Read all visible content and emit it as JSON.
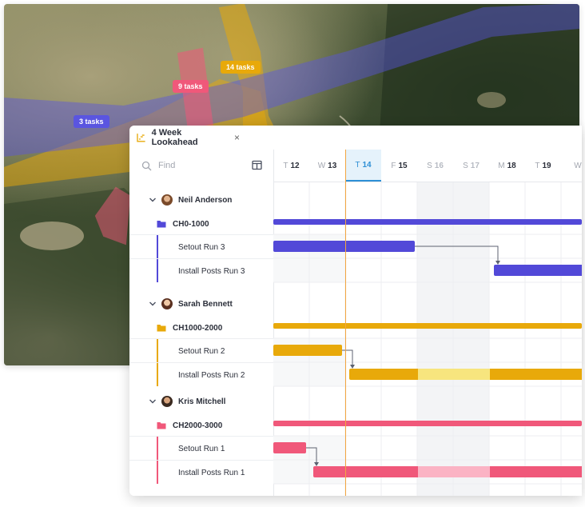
{
  "map": {
    "tags": [
      {
        "label": "14 tasks",
        "color": "#e8a90a"
      },
      {
        "label": "9 tasks",
        "color": "#f0587a"
      },
      {
        "label": "3 tasks",
        "color": "#5a55e0"
      }
    ]
  },
  "panel": {
    "tab_title": "4 Week Lookahead",
    "tab_close": "×",
    "search_placeholder": "Find",
    "days": [
      {
        "letter": "T",
        "num": "12",
        "weekend": false,
        "today": false
      },
      {
        "letter": "W",
        "num": "13",
        "weekend": false,
        "today": false
      },
      {
        "letter": "T",
        "num": "14",
        "weekend": false,
        "today": true
      },
      {
        "letter": "F",
        "num": "15",
        "weekend": false,
        "today": false
      },
      {
        "letter": "S",
        "num": "16",
        "weekend": true,
        "today": false
      },
      {
        "letter": "S",
        "num": "17",
        "weekend": true,
        "today": false
      },
      {
        "letter": "M",
        "num": "18",
        "weekend": false,
        "today": false
      },
      {
        "letter": "T",
        "num": "19",
        "weekend": false,
        "today": false
      },
      {
        "letter": "W",
        "num": "",
        "weekend": false,
        "today": false
      }
    ],
    "groups": [
      {
        "person": "Neil Anderson",
        "chainage": "CH0-1000",
        "color": "#5249d8",
        "tasks": [
          "Setout Run 3",
          "Install Posts Run 3"
        ]
      },
      {
        "person": "Sarah Bennett",
        "chainage": "CH1000-2000",
        "color": "#e8a90a",
        "tasks": [
          "Setout Run 2",
          "Install Posts Run 2"
        ]
      },
      {
        "person": "Kris Mitchell",
        "chainage": "CH2000-3000",
        "color": "#f0587a",
        "tasks": [
          "Setout Run 1",
          "Install Posts Run 1"
        ]
      }
    ]
  }
}
